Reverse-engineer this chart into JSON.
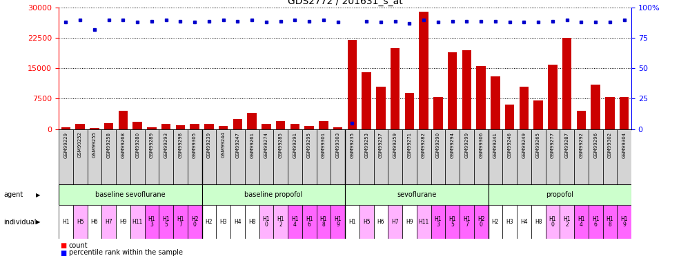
{
  "title": "GDS2772 / 201631_s_at",
  "samples": [
    "GSM99229",
    "GSM99252",
    "GSM99255",
    "GSM99258",
    "GSM99268",
    "GSM99280",
    "GSM99289",
    "GSM99293",
    "GSM99298",
    "GSM99305",
    "GSM99239",
    "GSM99244",
    "GSM99247",
    "GSM99261",
    "GSM99274",
    "GSM99285",
    "GSM99291",
    "GSM99295",
    "GSM99301",
    "GSM99303",
    "GSM99235",
    "GSM99253",
    "GSM99257",
    "GSM99259",
    "GSM99271",
    "GSM99282",
    "GSM99290",
    "GSM99294",
    "GSM99299",
    "GSM99306",
    "GSM99241",
    "GSM99246",
    "GSM99249",
    "GSM99265",
    "GSM99277",
    "GSM99287",
    "GSM99292",
    "GSM99296",
    "GSM99302",
    "GSM99304"
  ],
  "counts": [
    400,
    1200,
    200,
    1500,
    4500,
    1800,
    500,
    1300,
    1000,
    1200,
    1200,
    800,
    2500,
    4000,
    1200,
    2000,
    1300,
    700,
    2000,
    500,
    22000,
    14000,
    10500,
    20000,
    9000,
    29000,
    8000,
    19000,
    19500,
    15500,
    13000,
    6000,
    10500,
    7000,
    16000,
    22500,
    4500,
    11000,
    8000,
    8000
  ],
  "percentile_ranks": [
    88,
    90,
    82,
    90,
    90,
    88,
    89,
    90,
    89,
    88,
    89,
    90,
    89,
    90,
    88,
    89,
    90,
    89,
    90,
    88,
    5,
    89,
    88,
    89,
    87,
    90,
    88,
    89,
    89,
    89,
    89,
    88,
    88,
    88,
    89,
    90,
    88,
    88,
    88,
    90
  ],
  "groups": [
    {
      "label": "baseline sevoflurane",
      "start": 0,
      "end": 10
    },
    {
      "label": "baseline propofol",
      "start": 10,
      "end": 20
    },
    {
      "label": "sevoflurane",
      "start": 20,
      "end": 30
    },
    {
      "label": "propofol",
      "start": 30,
      "end": 40
    }
  ],
  "ind_labels": [
    "H1",
    "H5",
    "H6",
    "H7",
    "H9",
    "H11",
    "H1\n3",
    "H1\n5",
    "H1\n7",
    "H2\n0",
    "H2",
    "H3",
    "H4",
    "H8",
    "H1\n0",
    "H1\n2",
    "H1\n4",
    "H1\n6",
    "H1\n8",
    "H1\n9",
    "H1",
    "H5",
    "H6",
    "H7",
    "H9",
    "H11",
    "H1\n3",
    "H1\n5",
    "H1\n7",
    "H2\n0",
    "H2",
    "H3",
    "H4",
    "H8",
    "H1\n0",
    "H1\n2",
    "H1\n4",
    "H1\n6",
    "H1\n8",
    "H1\n9"
  ],
  "ind_colors": [
    "#ffffff",
    "#ffb3ff",
    "#ffffff",
    "#ffb3ff",
    "#ffffff",
    "#ffb3ff",
    "#ff66ff",
    "#ff66ff",
    "#ff66ff",
    "#ff66ff",
    "#ffffff",
    "#ffffff",
    "#ffffff",
    "#ffffff",
    "#ffb3ff",
    "#ffb3ff",
    "#ff66ff",
    "#ff66ff",
    "#ff66ff",
    "#ff66ff",
    "#ffffff",
    "#ffb3ff",
    "#ffffff",
    "#ffb3ff",
    "#ffffff",
    "#ffb3ff",
    "#ff66ff",
    "#ff66ff",
    "#ff66ff",
    "#ff66ff",
    "#ffffff",
    "#ffffff",
    "#ffffff",
    "#ffffff",
    "#ffb3ff",
    "#ffb3ff",
    "#ff66ff",
    "#ff66ff",
    "#ff66ff",
    "#ff66ff"
  ],
  "bar_color": "#cc0000",
  "dot_color": "#0000cc",
  "ylim_left": [
    0,
    30000
  ],
  "ylim_right": [
    0,
    100
  ],
  "yticks_left": [
    0,
    7500,
    15000,
    22500,
    30000
  ],
  "yticks_right": [
    0,
    25,
    50,
    75,
    100
  ],
  "group_color": "#ccffcc",
  "gsm_label_bg": "#d4d4d4",
  "bg_color": "#ffffff"
}
